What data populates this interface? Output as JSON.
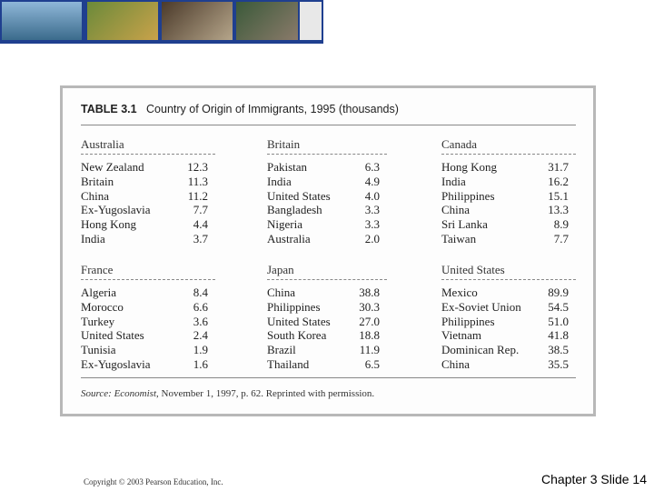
{
  "table": {
    "label": "TABLE 3.1",
    "title": "Country of Origin of Immigrants, 1995 (thousands)",
    "groups": [
      {
        "name": "Australia",
        "rows": [
          [
            "New Zealand",
            "12.3"
          ],
          [
            "Britain",
            "11.3"
          ],
          [
            "China",
            "11.2"
          ],
          [
            "Ex-Yugoslavia",
            "7.7"
          ],
          [
            "Hong Kong",
            "4.4"
          ],
          [
            "India",
            "3.7"
          ]
        ]
      },
      {
        "name": "Britain",
        "rows": [
          [
            "Pakistan",
            "6.3"
          ],
          [
            "India",
            "4.9"
          ],
          [
            "United States",
            "4.0"
          ],
          [
            "Bangladesh",
            "3.3"
          ],
          [
            "Nigeria",
            "3.3"
          ],
          [
            "Australia",
            "2.0"
          ]
        ]
      },
      {
        "name": "Canada",
        "rows": [
          [
            "Hong Kong",
            "31.7"
          ],
          [
            "India",
            "16.2"
          ],
          [
            "Philippines",
            "15.1"
          ],
          [
            "China",
            "13.3"
          ],
          [
            "Sri Lanka",
            "8.9"
          ],
          [
            "Taiwan",
            "7.7"
          ]
        ]
      },
      {
        "name": "France",
        "rows": [
          [
            "Algeria",
            "8.4"
          ],
          [
            "Morocco",
            "6.6"
          ],
          [
            "Turkey",
            "3.6"
          ],
          [
            "United States",
            "2.4"
          ],
          [
            "Tunisia",
            "1.9"
          ],
          [
            "Ex-Yugoslavia",
            "1.6"
          ]
        ]
      },
      {
        "name": "Japan",
        "rows": [
          [
            "China",
            "38.8"
          ],
          [
            "Philippines",
            "30.3"
          ],
          [
            "United States",
            "27.0"
          ],
          [
            "South Korea",
            "18.8"
          ],
          [
            "Brazil",
            "11.9"
          ],
          [
            "Thailand",
            "6.5"
          ]
        ]
      },
      {
        "name": "United States",
        "rows": [
          [
            "Mexico",
            "89.9"
          ],
          [
            "Ex-Soviet Union",
            "54.5"
          ],
          [
            "Philippines",
            "51.0"
          ],
          [
            "Vietnam",
            "41.8"
          ],
          [
            "Dominican Rep.",
            "38.5"
          ],
          [
            "China",
            "35.5"
          ]
        ]
      }
    ],
    "source": {
      "label": "Source:",
      "publication": "Economist",
      "rest": ", November 1, 1997, p. 62. Reprinted with permission."
    }
  },
  "footer": {
    "copyright": "Copyright © 2003 Pearson Education, Inc.",
    "slide": "Chapter 3 Slide 14"
  }
}
